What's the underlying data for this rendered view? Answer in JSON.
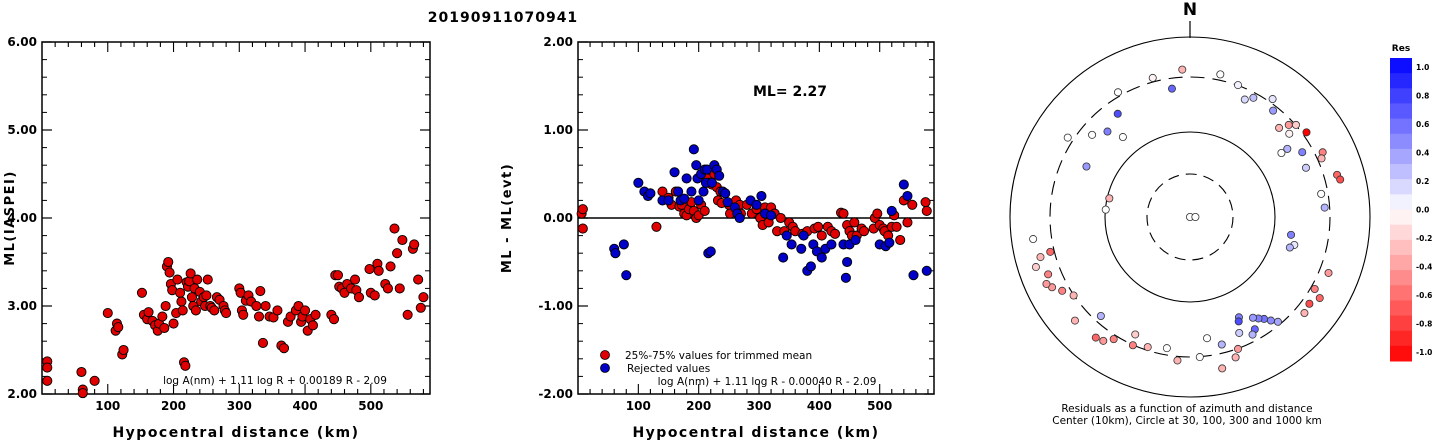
{
  "title": "20190911070941",
  "colors": {
    "red": "#e00000",
    "blue": "#0000c8",
    "axis": "#000000"
  },
  "chart_data": [
    {
      "type": "scatter",
      "ylabel": "ML(IASPEI)",
      "xlabel": "Hypocentral distance (km)",
      "xlim": [
        0,
        590
      ],
      "ylim": [
        2.0,
        6.0
      ],
      "xticks": [
        "100",
        "200",
        "300",
        "400",
        "500"
      ],
      "yticks": [
        "2.00",
        "3.00",
        "4.00",
        "5.00",
        "6.00"
      ],
      "formula": "log A(nm) + 1.11 log R + 0.00189 R - 2.09",
      "series": [
        {
          "color": "red",
          "x": [
            8,
            8,
            8,
            60,
            62,
            62,
            80,
            100,
            112,
            114,
            116,
            122,
            124,
            152,
            155,
            160,
            162,
            168,
            172,
            176,
            178,
            183,
            186,
            188,
            190,
            192,
            194,
            196,
            198,
            200,
            204,
            206,
            210,
            212,
            214,
            216,
            218,
            220,
            222,
            224,
            226,
            228,
            230,
            232,
            234,
            236,
            240,
            242,
            246,
            248,
            250,
            252,
            256,
            258,
            262,
            266,
            270,
            276,
            278,
            280,
            300,
            302,
            304,
            306,
            310,
            314,
            318,
            326,
            330,
            332,
            336,
            340,
            346,
            352,
            358,
            364,
            368,
            374,
            378,
            386,
            390,
            394,
            396,
            400,
            404,
            408,
            412,
            416,
            440,
            444,
            446,
            450,
            452,
            456,
            460,
            464,
            470,
            476,
            478,
            482,
            498,
            500,
            506,
            510,
            512,
            522,
            526,
            530,
            536,
            540,
            544,
            548,
            556,
            564,
            566,
            572,
            576,
            580
          ],
          "y": [
            2.37,
            2.3,
            2.15,
            2.25,
            2.05,
            2.01,
            2.15,
            2.92,
            2.72,
            2.8,
            2.76,
            2.45,
            2.5,
            3.15,
            2.9,
            2.85,
            2.93,
            2.83,
            2.78,
            2.72,
            2.8,
            2.88,
            2.75,
            3.0,
            3.45,
            3.5,
            3.38,
            3.25,
            3.18,
            2.8,
            2.92,
            3.3,
            3.15,
            3.05,
            2.95,
            2.36,
            2.32,
            3.27,
            3.22,
            3.28,
            3.37,
            3.1,
            3.0,
            3.2,
            2.95,
            3.3,
            3.16,
            3.05,
            3.1,
            3.0,
            3.12,
            3.3,
            3.0,
            2.98,
            2.95,
            3.1,
            3.07,
            3.0,
            2.95,
            2.92,
            3.2,
            3.15,
            2.95,
            2.9,
            3.06,
            3.12,
            3.05,
            3.0,
            2.88,
            3.17,
            2.58,
            3.0,
            2.88,
            2.87,
            2.95,
            2.55,
            2.52,
            2.82,
            2.88,
            2.95,
            3.0,
            2.82,
            2.88,
            2.95,
            2.72,
            2.85,
            2.78,
            2.9,
            2.9,
            2.85,
            3.35,
            3.35,
            3.22,
            3.2,
            3.15,
            3.25,
            3.2,
            3.3,
            3.18,
            3.1,
            3.42,
            3.15,
            3.12,
            3.48,
            3.4,
            3.25,
            3.2,
            3.45,
            3.88,
            3.6,
            3.2,
            3.75,
            2.9,
            3.65,
            3.7,
            3.3,
            2.98,
            3.1
          ]
        }
      ]
    },
    {
      "type": "scatter",
      "ylabel": "ML - ML(evt)",
      "xlabel": "Hypocentral distance (km)",
      "xlim": [
        0,
        590
      ],
      "ylim": [
        -2.0,
        2.0
      ],
      "xticks": [
        "100",
        "200",
        "300",
        "400",
        "500"
      ],
      "yticks": [
        "-2.00",
        "-1.00",
        "0.00",
        "1.00",
        "2.00"
      ],
      "annotation": "ML= 2.27",
      "formula": "log A(nm) + 1.11 log R - 0.00040 R - 2.09",
      "legend": [
        {
          "label": "25%-75% values for trimmed mean",
          "color": "red"
        },
        {
          "label": "Rejected values",
          "color": "blue"
        }
      ],
      "series": [
        {
          "color": "red",
          "x": [
            6,
            8,
            8,
            130,
            140,
            150,
            155,
            162,
            168,
            172,
            176,
            180,
            184,
            188,
            192,
            196,
            200,
            204,
            210,
            214,
            216,
            218,
            222,
            226,
            230,
            232,
            236,
            238,
            250,
            252,
            258,
            262,
            268,
            270,
            280,
            288,
            296,
            302,
            306,
            310,
            316,
            320,
            326,
            330,
            336,
            342,
            350,
            356,
            360,
            372,
            380,
            392,
            398,
            404,
            414,
            420,
            426,
            436,
            440,
            446,
            450,
            454,
            458,
            462,
            470,
            474,
            490,
            492,
            496,
            500,
            506,
            508,
            514,
            520,
            524,
            528,
            534,
            540,
            546,
            554,
            576,
            578
          ],
          "y": [
            0.05,
            0.1,
            -0.12,
            -0.1,
            0.3,
            0.23,
            0.15,
            0.3,
            0.13,
            0.15,
            0.05,
            0.03,
            0.1,
            0.18,
            0.08,
            0.0,
            0.03,
            0.15,
            0.08,
            0.45,
            0.4,
            0.4,
            0.38,
            0.5,
            0.35,
            0.2,
            0.3,
            0.17,
            0.15,
            0.05,
            0.17,
            0.2,
            0.15,
            0.05,
            0.15,
            0.05,
            0.1,
            0.0,
            -0.08,
            0.12,
            -0.05,
            0.12,
            0.05,
            -0.15,
            0.0,
            -0.15,
            -0.05,
            -0.1,
            -0.15,
            -0.18,
            -0.15,
            -0.12,
            -0.1,
            -0.2,
            -0.1,
            -0.15,
            -0.18,
            0.06,
            0.05,
            -0.08,
            -0.15,
            -0.2,
            -0.05,
            -0.2,
            -0.12,
            -0.15,
            -0.12,
            0.0,
            0.05,
            -0.08,
            -0.12,
            -0.15,
            -0.2,
            -0.1,
            0.03,
            -0.1,
            -0.25,
            0.2,
            -0.05,
            0.15,
            0.18,
            0.08
          ]
        },
        {
          "color": "blue",
          "x": [
            60,
            62,
            76,
            80,
            100,
            110,
            116,
            120,
            140,
            150,
            160,
            166,
            170,
            176,
            180,
            188,
            192,
            196,
            198,
            200,
            204,
            208,
            210,
            212,
            214,
            216,
            220,
            222,
            226,
            230,
            234,
            240,
            244,
            248,
            260,
            264,
            268,
            286,
            296,
            304,
            310,
            320,
            340,
            346,
            354,
            370,
            374,
            380,
            386,
            390,
            396,
            404,
            410,
            420,
            440,
            444,
            446,
            450,
            460,
            500,
            510,
            516,
            520,
            540,
            546,
            556,
            578
          ],
          "y": [
            -0.35,
            -0.4,
            -0.3,
            -0.65,
            0.4,
            0.3,
            0.25,
            0.28,
            0.2,
            0.2,
            0.52,
            0.3,
            0.2,
            0.22,
            0.45,
            0.3,
            0.78,
            0.6,
            0.45,
            0.2,
            0.5,
            0.3,
            0.55,
            0.4,
            0.55,
            -0.4,
            -0.38,
            0.4,
            0.6,
            0.55,
            0.48,
            0.3,
            0.28,
            0.18,
            0.12,
            0.05,
            0.0,
            0.2,
            0.15,
            0.25,
            0.05,
            0.03,
            -0.45,
            -0.2,
            -0.3,
            -0.35,
            -0.2,
            -0.6,
            -0.55,
            -0.3,
            -0.38,
            -0.45,
            -0.35,
            -0.3,
            -0.3,
            -0.68,
            -0.5,
            -0.3,
            -0.25,
            -0.3,
            -0.32,
            -0.28,
            0.08,
            0.38,
            0.25,
            -0.65,
            -0.6
          ]
        }
      ]
    },
    {
      "type": "polar",
      "north_label": "N",
      "caption": [
        "Residuals as a function of azimuth and distance",
        "Center (10km), Circle at 30, 100, 300 and 1000 km"
      ],
      "colorbar": {
        "title": "Res",
        "ticks": [
          "1.0",
          "0.8",
          "0.6",
          "0.4",
          "0.2",
          "0.0",
          "-0.2",
          "-0.4",
          "-0.6",
          "-0.8",
          "-1.0"
        ]
      },
      "points": [
        {
          "az": -15,
          "r": 0.8,
          "res": -0.05
        },
        {
          "az": -3,
          "r": 0.82,
          "res": -0.3
        },
        {
          "az": 12,
          "r": 0.81,
          "res": 0.0
        },
        {
          "az": -8,
          "r": 0.72,
          "res": 0.6
        },
        {
          "az": -35,
          "r": 0.7,
          "res": 0.7
        },
        {
          "az": -40,
          "r": 0.58,
          "res": 0.0
        },
        {
          "az": 20,
          "r": 0.78,
          "res": 0.05
        },
        {
          "az": 25,
          "r": 0.72,
          "res": 0.15
        },
        {
          "az": 28,
          "r": 0.75,
          "res": 0.25
        },
        {
          "az": 35,
          "r": 0.8,
          "res": 0.1
        },
        {
          "az": 38,
          "r": 0.75,
          "res": 0.4
        },
        {
          "az": 45,
          "r": 0.7,
          "res": -0.3
        },
        {
          "az": 47,
          "r": 0.75,
          "res": -0.4
        },
        {
          "az": 49,
          "r": 0.78,
          "res": -0.2
        },
        {
          "az": 50,
          "r": 0.72,
          "res": -0.05
        },
        {
          "az": 54,
          "r": 0.8,
          "res": -1.0
        },
        {
          "az": 55,
          "r": 0.62,
          "res": 0.0
        },
        {
          "az": 55,
          "r": 0.66,
          "res": 0.3
        },
        {
          "az": 60,
          "r": 0.72,
          "res": 0.5
        },
        {
          "az": 64,
          "r": 0.82,
          "res": -0.5
        },
        {
          "az": 66,
          "r": 0.8,
          "res": -0.3
        },
        {
          "az": 67,
          "r": 0.7,
          "res": 0.2
        },
        {
          "az": 74,
          "r": 0.85,
          "res": -0.6
        },
        {
          "az": 76,
          "r": 0.86,
          "res": -0.7
        },
        {
          "az": 80,
          "r": 0.74,
          "res": 0.0
        },
        {
          "az": 86,
          "r": 0.75,
          "res": 0.3
        },
        {
          "az": 100,
          "r": 0.57,
          "res": 0.5
        },
        {
          "az": 105,
          "r": 0.6,
          "res": 0.1
        },
        {
          "az": 107,
          "r": 0.58,
          "res": 0.3
        },
        {
          "az": 112,
          "r": 0.83,
          "res": -0.4
        },
        {
          "az": 120,
          "r": 0.8,
          "res": -0.5
        },
        {
          "az": 122,
          "r": 0.85,
          "res": -0.6
        },
        {
          "az": 126,
          "r": 0.82,
          "res": -0.7
        },
        {
          "az": 130,
          "r": 0.83,
          "res": -0.3
        },
        {
          "az": 140,
          "r": 0.76,
          "res": 0.35
        },
        {
          "az": 142,
          "r": 0.73,
          "res": 0.45
        },
        {
          "az": 144,
          "r": 0.7,
          "res": 0.55
        },
        {
          "az": 146,
          "r": 0.68,
          "res": 0.5
        },
        {
          "az": 148,
          "r": 0.66,
          "res": 0.4
        },
        {
          "az": 150,
          "r": 0.72,
          "res": 0.6
        },
        {
          "az": 152,
          "r": 0.74,
          "res": 0.3
        },
        {
          "az": 154,
          "r": 0.62,
          "res": 0.5
        },
        {
          "az": 155,
          "r": 0.64,
          "res": 0.7
        },
        {
          "az": 157,
          "r": 0.7,
          "res": 0.2
        },
        {
          "az": 160,
          "r": 0.78,
          "res": -0.4
        },
        {
          "az": 162,
          "r": 0.82,
          "res": -0.3
        },
        {
          "az": 166,
          "r": 0.73,
          "res": 0.3
        },
        {
          "az": 168,
          "r": 0.86,
          "res": -0.3
        },
        {
          "az": 172,
          "r": 0.68,
          "res": 0.0
        },
        {
          "az": 176,
          "r": 0.78,
          "res": 0.0
        },
        {
          "az": 185,
          "r": 0.8,
          "res": -0.3
        },
        {
          "az": 190,
          "r": 0.74,
          "res": 0.0
        },
        {
          "az": 198,
          "r": 0.76,
          "res": -0.3
        },
        {
          "az": 204,
          "r": 0.78,
          "res": -0.5
        },
        {
          "az": 212,
          "r": 0.8,
          "res": -0.5
        },
        {
          "az": 215,
          "r": 0.84,
          "res": -0.4
        },
        {
          "az": 218,
          "r": 0.85,
          "res": -0.6
        },
        {
          "az": 222,
          "r": 0.74,
          "res": 0.3
        },
        {
          "az": 228,
          "r": 0.86,
          "res": -0.3
        },
        {
          "az": 236,
          "r": 0.78,
          "res": -0.3
        },
        {
          "az": 240,
          "r": 0.82,
          "res": -0.5
        },
        {
          "az": 243,
          "r": 0.86,
          "res": -0.4
        },
        {
          "az": 245,
          "r": 0.88,
          "res": -0.4
        },
        {
          "az": 248,
          "r": 0.85,
          "res": -0.5
        },
        {
          "az": 252,
          "r": 0.9,
          "res": -0.2
        },
        {
          "az": 255,
          "r": 0.86,
          "res": -0.3
        },
        {
          "az": 256,
          "r": 0.8,
          "res": -0.6
        },
        {
          "az": 262,
          "r": 0.88,
          "res": 0.0
        },
        {
          "az": 275,
          "r": 0.47,
          "res": 0.0
        },
        {
          "az": 283,
          "r": 0.46,
          "res": -0.3
        },
        {
          "az": 296,
          "r": 0.64,
          "res": 0.4
        },
        {
          "az": 310,
          "r": 0.71,
          "res": 0.0
        },
        {
          "az": 316,
          "r": 0.66,
          "res": 0.5
        },
        {
          "az": 330,
          "r": 0.8,
          "res": 0.0
        },
        {
          "az": 0,
          "r": 0.0,
          "res": 0.0
        },
        {
          "az": 90,
          "r": 0.03,
          "res": 0.0
        },
        {
          "az": 205,
          "r": 0.72,
          "res": -0.2
        },
        {
          "az": 303,
          "r": 0.81,
          "res": 0.0
        }
      ]
    }
  ]
}
